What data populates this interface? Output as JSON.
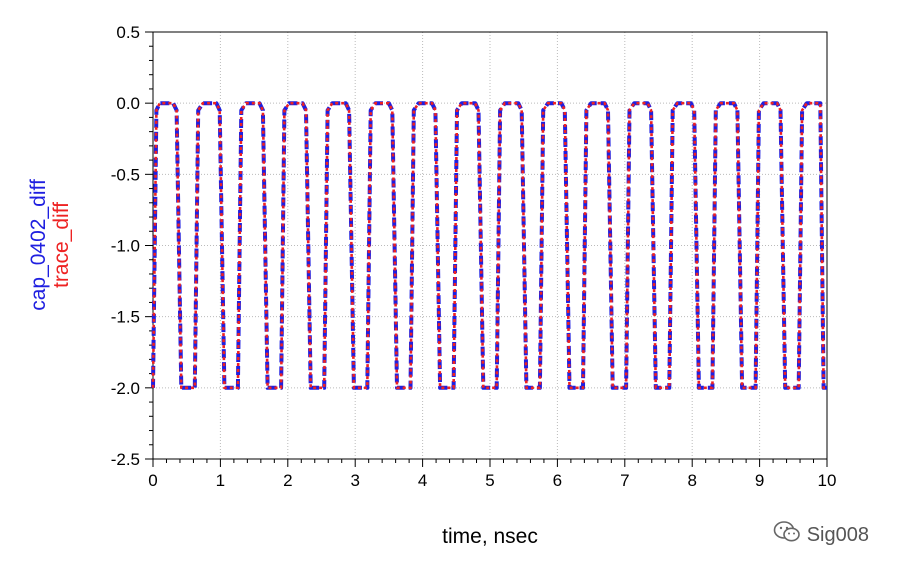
{
  "chart_data": {
    "type": "line",
    "xlabel": "time, nsec",
    "ylabels": [
      "cap_0402_diff",
      "trace_diff"
    ],
    "xlim": [
      0,
      10
    ],
    "ylim": [
      -2.5,
      0.5
    ],
    "x_ticks": [
      0,
      1,
      2,
      3,
      4,
      5,
      6,
      7,
      8,
      9,
      10
    ],
    "y_ticks": [
      0.5,
      0.0,
      -0.5,
      -1.0,
      -1.5,
      -2.0,
      -2.5
    ],
    "y_tick_labels": [
      "0.5",
      "0.0",
      "-0.5",
      "-1.0",
      "-1.5",
      "-2.0",
      "-2.5"
    ],
    "grid": true,
    "colors": {
      "cap_0402_diff": "#1f1fe0",
      "trace_diff": "#ee2222"
    },
    "series": [
      {
        "name": "cap_0402_diff",
        "style": "dashed",
        "color": "#1f1fe0",
        "x": [
          0.0,
          0.05,
          0.1,
          0.3,
          0.35,
          0.42,
          0.62,
          0.67,
          0.74,
          0.94,
          0.99,
          1.06,
          1.26,
          1.31,
          1.38,
          1.58,
          1.63,
          1.7,
          1.9,
          1.95,
          2.02,
          2.22,
          2.27,
          2.34,
          2.54,
          2.59,
          2.66,
          2.86,
          2.91,
          2.98,
          3.18,
          3.23,
          3.3,
          3.5,
          3.55,
          3.62,
          3.82,
          3.87,
          3.94,
          4.14,
          4.19,
          4.26,
          4.46,
          4.51,
          4.58,
          4.78,
          4.83,
          4.9,
          5.1,
          5.15,
          5.22,
          5.42,
          5.47,
          5.54,
          5.74,
          5.79,
          5.86,
          6.06,
          6.11,
          6.18,
          6.38,
          6.43,
          6.5,
          6.7,
          6.75,
          6.82,
          7.02,
          7.07,
          7.14,
          7.34,
          7.39,
          7.46,
          7.66,
          7.71,
          7.78,
          7.98,
          8.03,
          8.1,
          8.3,
          8.35,
          8.42,
          8.62,
          8.67,
          8.74,
          8.94,
          8.99,
          9.06,
          9.26,
          9.31,
          9.38,
          9.58,
          9.63,
          9.7,
          9.9,
          9.95,
          10.0
        ],
        "y": [
          -2.0,
          -0.05,
          0.0,
          0.0,
          -0.05,
          -2.0,
          -2.0,
          -0.05,
          0.0,
          0.0,
          -0.05,
          -2.0,
          -2.0,
          -0.05,
          0.0,
          0.0,
          -0.05,
          -2.0,
          -2.0,
          -0.05,
          0.0,
          0.0,
          -0.05,
          -2.0,
          -2.0,
          -0.05,
          0.0,
          0.0,
          -0.05,
          -2.0,
          -2.0,
          -0.05,
          0.0,
          0.0,
          -0.05,
          -2.0,
          -2.0,
          -0.05,
          0.0,
          0.0,
          -0.05,
          -2.0,
          -2.0,
          -0.05,
          0.0,
          0.0,
          -0.05,
          -2.0,
          -2.0,
          -0.05,
          0.0,
          0.0,
          -0.05,
          -2.0,
          -2.0,
          -0.05,
          0.0,
          0.0,
          -0.05,
          -2.0,
          -2.0,
          -0.05,
          0.0,
          0.0,
          -0.05,
          -2.0,
          -2.0,
          -0.05,
          0.0,
          0.0,
          -0.05,
          -2.0,
          -2.0,
          -0.05,
          0.0,
          0.0,
          -0.05,
          -2.0,
          -2.0,
          -0.05,
          0.0,
          0.0,
          -0.05,
          -2.0,
          -2.0,
          -0.05,
          0.0,
          0.0,
          -0.05,
          -2.0,
          -2.0,
          -0.05,
          0.0,
          0.0,
          -2.0,
          -2.0
        ]
      },
      {
        "name": "trace_diff",
        "style": "dotted",
        "color": "#ee2222",
        "x": [
          0.0,
          0.05,
          0.1,
          0.3,
          0.35,
          0.42,
          0.62,
          0.67,
          0.74,
          0.94,
          0.99,
          1.06,
          1.26,
          1.31,
          1.38,
          1.58,
          1.63,
          1.7,
          1.9,
          1.95,
          2.02,
          2.22,
          2.27,
          2.34,
          2.54,
          2.59,
          2.66,
          2.86,
          2.91,
          2.98,
          3.18,
          3.23,
          3.3,
          3.5,
          3.55,
          3.62,
          3.82,
          3.87,
          3.94,
          4.14,
          4.19,
          4.26,
          4.46,
          4.51,
          4.58,
          4.78,
          4.83,
          4.9,
          5.1,
          5.15,
          5.22,
          5.42,
          5.47,
          5.54,
          5.74,
          5.79,
          5.86,
          6.06,
          6.11,
          6.18,
          6.38,
          6.43,
          6.5,
          6.7,
          6.75,
          6.82,
          7.02,
          7.07,
          7.14,
          7.34,
          7.39,
          7.46,
          7.66,
          7.71,
          7.78,
          7.98,
          8.03,
          8.1,
          8.3,
          8.35,
          8.42,
          8.62,
          8.67,
          8.74,
          8.94,
          8.99,
          9.06,
          9.26,
          9.31,
          9.38,
          9.58,
          9.63,
          9.7,
          9.9,
          9.95,
          10.0
        ],
        "y": [
          -2.0,
          -0.05,
          0.0,
          0.0,
          -0.05,
          -2.0,
          -2.0,
          -0.05,
          0.0,
          0.0,
          -0.05,
          -2.0,
          -2.0,
          -0.05,
          0.0,
          0.0,
          -0.05,
          -2.0,
          -2.0,
          -0.05,
          0.0,
          0.0,
          -0.05,
          -2.0,
          -2.0,
          -0.05,
          0.0,
          0.0,
          -0.05,
          -2.0,
          -2.0,
          -0.05,
          0.0,
          0.0,
          -0.05,
          -2.0,
          -2.0,
          -0.05,
          0.0,
          0.0,
          -0.05,
          -2.0,
          -2.0,
          -0.05,
          0.0,
          0.0,
          -0.05,
          -2.0,
          -2.0,
          -0.05,
          0.0,
          0.0,
          -0.05,
          -2.0,
          -2.0,
          -0.05,
          0.0,
          0.0,
          -0.05,
          -2.0,
          -2.0,
          -0.05,
          0.0,
          0.0,
          -0.05,
          -2.0,
          -2.0,
          -0.05,
          0.0,
          0.0,
          -0.05,
          -2.0,
          -2.0,
          -0.05,
          0.0,
          0.0,
          -0.05,
          -2.0,
          -2.0,
          -0.05,
          0.0,
          0.0,
          -0.05,
          -2.0,
          -2.0,
          -0.05,
          0.0,
          0.0,
          -0.05,
          -2.0,
          -2.0,
          -0.05,
          0.0,
          0.0,
          -2.0,
          -2.0
        ]
      }
    ]
  },
  "watermark": {
    "text": "Sig008",
    "icon": "wechat-icon"
  }
}
